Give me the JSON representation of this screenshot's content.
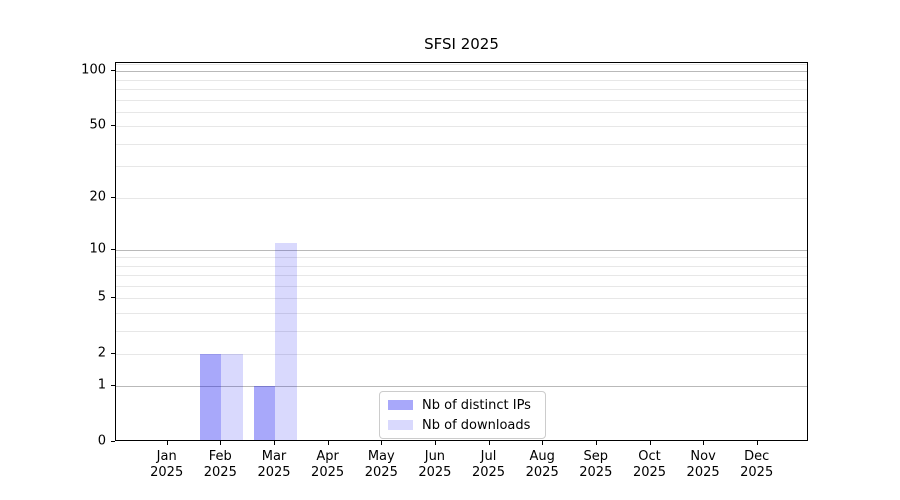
{
  "chart_data": {
    "type": "bar",
    "title": "SFSI 2025",
    "categories": [
      {
        "month": "Jan",
        "year": "2025"
      },
      {
        "month": "Feb",
        "year": "2025"
      },
      {
        "month": "Mar",
        "year": "2025"
      },
      {
        "month": "Apr",
        "year": "2025"
      },
      {
        "month": "May",
        "year": "2025"
      },
      {
        "month": "Jun",
        "year": "2025"
      },
      {
        "month": "Jul",
        "year": "2025"
      },
      {
        "month": "Aug",
        "year": "2025"
      },
      {
        "month": "Sep",
        "year": "2025"
      },
      {
        "month": "Oct",
        "year": "2025"
      },
      {
        "month": "Nov",
        "year": "2025"
      },
      {
        "month": "Dec",
        "year": "2025"
      }
    ],
    "series": [
      {
        "name": "Nb of distinct IPs",
        "color": "rgba(0,0,240,0.34)",
        "values": [
          0,
          2,
          1,
          0,
          0,
          0,
          0,
          0,
          0,
          0,
          0,
          0
        ]
      },
      {
        "name": "Nb of downloads",
        "color": "rgba(0,0,240,0.15)",
        "values": [
          0,
          2,
          11,
          0,
          0,
          0,
          0,
          0,
          0,
          0,
          0,
          0
        ]
      }
    ],
    "xlabel": "",
    "ylabel": "",
    "y_axis": {
      "scale": "log1p",
      "tick_labels": [
        0,
        1,
        2,
        5,
        10,
        20,
        50,
        100
      ],
      "major_gridlines": [
        1,
        10,
        100
      ],
      "minor_gridlines": [
        2,
        3,
        4,
        5,
        6,
        7,
        8,
        9,
        20,
        30,
        40,
        50,
        60,
        70,
        80,
        90,
        110
      ],
      "ylim": [
        0,
        111
      ],
      "range_top_t": 2.05
    },
    "grid": true,
    "legend_position": "lower center-right inside plot",
    "colors": {
      "major_grid": "#b9b9b9",
      "minor_grid": "#e7e7e7",
      "spine": "#000000",
      "legend_border": "#cccccc"
    }
  }
}
